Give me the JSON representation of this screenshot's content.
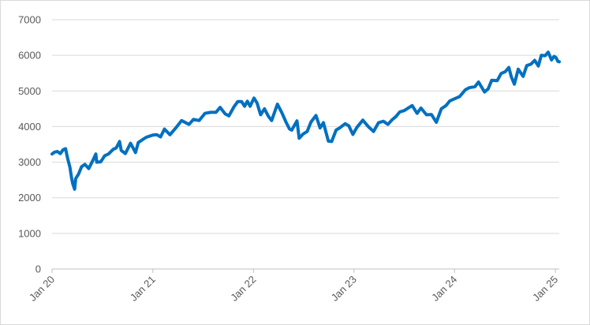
{
  "chart_data": {
    "type": "line",
    "title": "",
    "xlabel": "",
    "ylabel": "",
    "ylim": [
      0,
      7000
    ],
    "yticks": [
      0,
      1000,
      2000,
      3000,
      4000,
      5000,
      6000,
      7000
    ],
    "xlim": [
      "2020-01-01",
      "2025-01-15"
    ],
    "xticks": [
      {
        "date": "2020-01-01",
        "label": "Jan 20"
      },
      {
        "date": "2021-01-01",
        "label": "Jan 21"
      },
      {
        "date": "2022-01-01",
        "label": "Jan 22"
      },
      {
        "date": "2023-01-01",
        "label": "Jan 23"
      },
      {
        "date": "2024-01-01",
        "label": "Jan 24"
      },
      {
        "date": "2025-01-01",
        "label": "Jan 25"
      }
    ],
    "grid": "horizontal",
    "legend": "none",
    "line_color": "#0070c0",
    "series": [
      {
        "points": [
          [
            "2020-01-01",
            3230
          ],
          [
            "2020-01-10",
            3280
          ],
          [
            "2020-01-20",
            3300
          ],
          [
            "2020-01-31",
            3240
          ],
          [
            "2020-02-10",
            3350
          ],
          [
            "2020-02-19",
            3380
          ],
          [
            "2020-02-26",
            3120
          ],
          [
            "2020-03-06",
            2850
          ],
          [
            "2020-03-12",
            2550
          ],
          [
            "2020-03-16",
            2400
          ],
          [
            "2020-03-23",
            2240
          ],
          [
            "2020-03-27",
            2540
          ],
          [
            "2020-04-06",
            2660
          ],
          [
            "2020-04-17",
            2870
          ],
          [
            "2020-04-29",
            2940
          ],
          [
            "2020-05-13",
            2820
          ],
          [
            "2020-05-27",
            3030
          ],
          [
            "2020-06-08",
            3230
          ],
          [
            "2020-06-11",
            3000
          ],
          [
            "2020-06-26",
            3010
          ],
          [
            "2020-07-10",
            3180
          ],
          [
            "2020-07-24",
            3230
          ],
          [
            "2020-08-10",
            3360
          ],
          [
            "2020-08-21",
            3400
          ],
          [
            "2020-09-02",
            3580
          ],
          [
            "2020-09-08",
            3330
          ],
          [
            "2020-09-23",
            3240
          ],
          [
            "2020-10-12",
            3530
          ],
          [
            "2020-10-30",
            3270
          ],
          [
            "2020-11-09",
            3550
          ],
          [
            "2020-11-24",
            3630
          ],
          [
            "2020-12-08",
            3700
          ],
          [
            "2020-12-31",
            3760
          ],
          [
            "2021-01-15",
            3770
          ],
          [
            "2021-01-29",
            3710
          ],
          [
            "2021-02-12",
            3930
          ],
          [
            "2021-03-04",
            3770
          ],
          [
            "2021-03-26",
            3970
          ],
          [
            "2021-04-15",
            4170
          ],
          [
            "2021-05-12",
            4060
          ],
          [
            "2021-05-28",
            4200
          ],
          [
            "2021-06-18",
            4170
          ],
          [
            "2021-07-09",
            4370
          ],
          [
            "2021-07-30",
            4400
          ],
          [
            "2021-08-18",
            4400
          ],
          [
            "2021-09-02",
            4540
          ],
          [
            "2021-09-20",
            4360
          ],
          [
            "2021-10-04",
            4300
          ],
          [
            "2021-10-22",
            4550
          ],
          [
            "2021-11-05",
            4700
          ],
          [
            "2021-11-19",
            4700
          ],
          [
            "2021-11-30",
            4570
          ],
          [
            "2021-12-10",
            4710
          ],
          [
            "2021-12-20",
            4570
          ],
          [
            "2022-01-03",
            4800
          ],
          [
            "2022-01-14",
            4660
          ],
          [
            "2022-01-27",
            4330
          ],
          [
            "2022-02-10",
            4500
          ],
          [
            "2022-02-24",
            4290
          ],
          [
            "2022-03-08",
            4170
          ],
          [
            "2022-03-29",
            4630
          ],
          [
            "2022-04-14",
            4390
          ],
          [
            "2022-04-29",
            4130
          ],
          [
            "2022-05-12",
            3930
          ],
          [
            "2022-05-20",
            3900
          ],
          [
            "2022-06-08",
            4160
          ],
          [
            "2022-06-16",
            3670
          ],
          [
            "2022-06-30",
            3790
          ],
          [
            "2022-07-15",
            3860
          ],
          [
            "2022-07-29",
            4130
          ],
          [
            "2022-08-16",
            4310
          ],
          [
            "2022-08-31",
            3960
          ],
          [
            "2022-09-12",
            4110
          ],
          [
            "2022-09-30",
            3590
          ],
          [
            "2022-10-12",
            3580
          ],
          [
            "2022-10-28",
            3900
          ],
          [
            "2022-11-10",
            3960
          ],
          [
            "2022-11-30",
            4080
          ],
          [
            "2022-12-13",
            4020
          ],
          [
            "2022-12-28",
            3780
          ],
          [
            "2023-01-12",
            3980
          ],
          [
            "2023-02-02",
            4180
          ],
          [
            "2023-02-23",
            3990
          ],
          [
            "2023-03-13",
            3860
          ],
          [
            "2023-03-31",
            4110
          ],
          [
            "2023-04-18",
            4150
          ],
          [
            "2023-05-04",
            4060
          ],
          [
            "2023-05-19",
            4190
          ],
          [
            "2023-06-02",
            4280
          ],
          [
            "2023-06-16",
            4410
          ],
          [
            "2023-07-03",
            4450
          ],
          [
            "2023-07-31",
            4590
          ],
          [
            "2023-08-18",
            4370
          ],
          [
            "2023-09-01",
            4520
          ],
          [
            "2023-09-21",
            4330
          ],
          [
            "2023-10-09",
            4340
          ],
          [
            "2023-10-27",
            4120
          ],
          [
            "2023-11-14",
            4500
          ],
          [
            "2023-12-01",
            4590
          ],
          [
            "2023-12-15",
            4720
          ],
          [
            "2023-12-29",
            4770
          ],
          [
            "2024-01-19",
            4840
          ],
          [
            "2024-02-09",
            5030
          ],
          [
            "2024-02-23",
            5090
          ],
          [
            "2024-03-15",
            5120
          ],
          [
            "2024-03-28",
            5250
          ],
          [
            "2024-04-19",
            4970
          ],
          [
            "2024-05-02",
            5060
          ],
          [
            "2024-05-15",
            5300
          ],
          [
            "2024-06-04",
            5290
          ],
          [
            "2024-06-18",
            5490
          ],
          [
            "2024-07-03",
            5540
          ],
          [
            "2024-07-16",
            5660
          ],
          [
            "2024-07-25",
            5400
          ],
          [
            "2024-08-05",
            5190
          ],
          [
            "2024-08-19",
            5610
          ],
          [
            "2024-09-06",
            5410
          ],
          [
            "2024-09-19",
            5710
          ],
          [
            "2024-10-04",
            5750
          ],
          [
            "2024-10-18",
            5860
          ],
          [
            "2024-10-31",
            5700
          ],
          [
            "2024-11-11",
            6000
          ],
          [
            "2024-11-25",
            5990
          ],
          [
            "2024-12-06",
            6090
          ],
          [
            "2024-12-18",
            5870
          ],
          [
            "2024-12-27",
            5970
          ],
          [
            "2025-01-03",
            5940
          ],
          [
            "2025-01-10",
            5830
          ],
          [
            "2025-01-15",
            5820
          ]
        ]
      }
    ]
  }
}
